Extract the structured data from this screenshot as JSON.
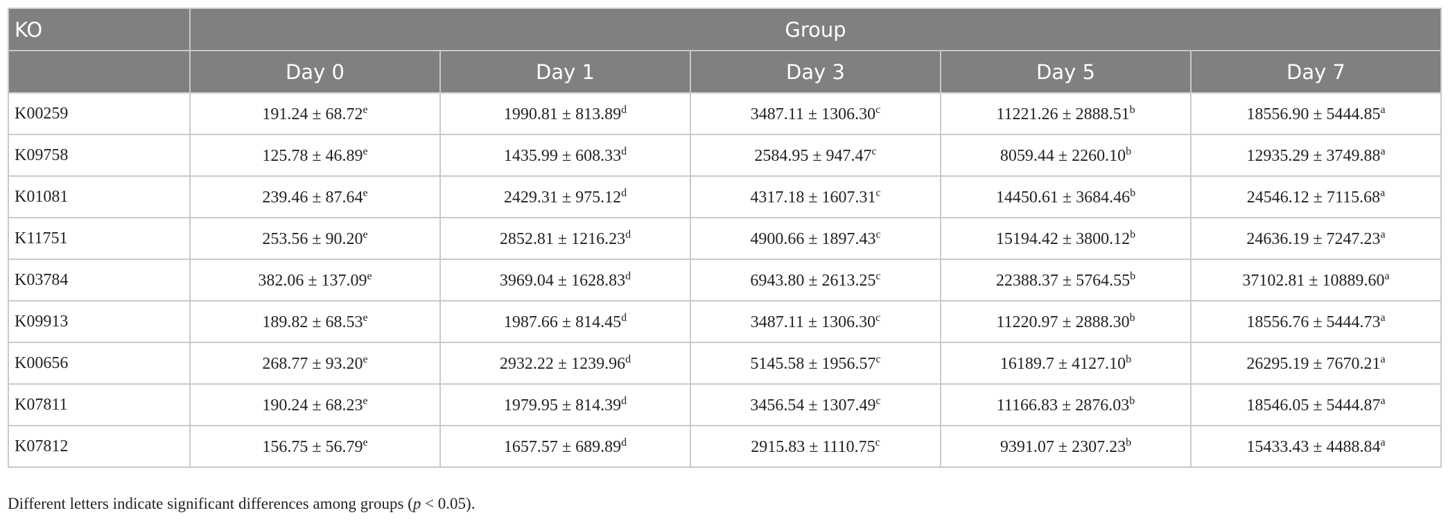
{
  "table": {
    "header": {
      "ko": "KO",
      "group": "Group",
      "days": [
        "Day 0",
        "Day 1",
        "Day 3",
        "Day 5",
        "Day 7"
      ]
    },
    "rows": [
      {
        "ko": "K00259",
        "cells": [
          {
            "value": "191.24 ± 68.72",
            "letter": "e"
          },
          {
            "value": "1990.81 ± 813.89",
            "letter": "d"
          },
          {
            "value": "3487.11 ± 1306.30",
            "letter": "c"
          },
          {
            "value": "11221.26 ± 2888.51",
            "letter": "b"
          },
          {
            "value": "18556.90 ± 5444.85",
            "letter": "a"
          }
        ]
      },
      {
        "ko": "K09758",
        "cells": [
          {
            "value": "125.78 ± 46.89",
            "letter": "e"
          },
          {
            "value": "1435.99 ± 608.33",
            "letter": "d"
          },
          {
            "value": "2584.95 ± 947.47",
            "letter": "c"
          },
          {
            "value": "8059.44 ± 2260.10",
            "letter": "b"
          },
          {
            "value": "12935.29 ± 3749.88",
            "letter": "a"
          }
        ]
      },
      {
        "ko": "K01081",
        "cells": [
          {
            "value": "239.46 ± 87.64",
            "letter": "e"
          },
          {
            "value": "2429.31 ± 975.12",
            "letter": "d"
          },
          {
            "value": "4317.18 ± 1607.31",
            "letter": "c"
          },
          {
            "value": "14450.61 ± 3684.46",
            "letter": "b"
          },
          {
            "value": "24546.12 ± 7115.68",
            "letter": "a"
          }
        ]
      },
      {
        "ko": "K11751",
        "cells": [
          {
            "value": "253.56 ± 90.20",
            "letter": "e"
          },
          {
            "value": "2852.81 ± 1216.23",
            "letter": "d"
          },
          {
            "value": "4900.66 ± 1897.43",
            "letter": "c"
          },
          {
            "value": "15194.42 ± 3800.12",
            "letter": "b"
          },
          {
            "value": "24636.19 ± 7247.23",
            "letter": "a"
          }
        ]
      },
      {
        "ko": "K03784",
        "cells": [
          {
            "value": "382.06 ± 137.09",
            "letter": "e"
          },
          {
            "value": "3969.04 ± 1628.83",
            "letter": "d"
          },
          {
            "value": "6943.80 ± 2613.25",
            "letter": "c"
          },
          {
            "value": "22388.37 ± 5764.55",
            "letter": "b"
          },
          {
            "value": "37102.81 ± 10889.60",
            "letter": "a"
          }
        ]
      },
      {
        "ko": "K09913",
        "cells": [
          {
            "value": "189.82 ± 68.53",
            "letter": "e"
          },
          {
            "value": "1987.66 ± 814.45",
            "letter": "d"
          },
          {
            "value": "3487.11 ± 1306.30",
            "letter": "c"
          },
          {
            "value": "11220.97 ± 2888.30",
            "letter": "b"
          },
          {
            "value": "18556.76 ± 5444.73",
            "letter": "a"
          }
        ]
      },
      {
        "ko": "K00656",
        "cells": [
          {
            "value": "268.77 ± 93.20",
            "letter": "e"
          },
          {
            "value": "2932.22 ± 1239.96",
            "letter": "d"
          },
          {
            "value": "5145.58 ± 1956.57",
            "letter": "c"
          },
          {
            "value": "16189.7 ± 4127.10",
            "letter": "b"
          },
          {
            "value": "26295.19 ± 7670.21",
            "letter": "a"
          }
        ]
      },
      {
        "ko": "K07811",
        "cells": [
          {
            "value": "190.24 ± 68.23",
            "letter": "e"
          },
          {
            "value": "1979.95 ± 814.39",
            "letter": "d"
          },
          {
            "value": "3456.54 ± 1307.49",
            "letter": "c"
          },
          {
            "value": "11166.83 ± 2876.03",
            "letter": "b"
          },
          {
            "value": "18546.05 ± 5444.87",
            "letter": "a"
          }
        ]
      },
      {
        "ko": "K07812",
        "cells": [
          {
            "value": "156.75 ± 56.79",
            "letter": "e"
          },
          {
            "value": "1657.57 ± 689.89",
            "letter": "d"
          },
          {
            "value": "2915.83 ± 1110.75",
            "letter": "c"
          },
          {
            "value": "9391.07 ± 2307.23",
            "letter": "b"
          },
          {
            "value": "15433.43 ± 4488.84",
            "letter": "a"
          }
        ]
      }
    ]
  },
  "footnote": {
    "before": "Different letters indicate significant differences among groups (",
    "italic": "p",
    "after": " < 0.05)."
  }
}
